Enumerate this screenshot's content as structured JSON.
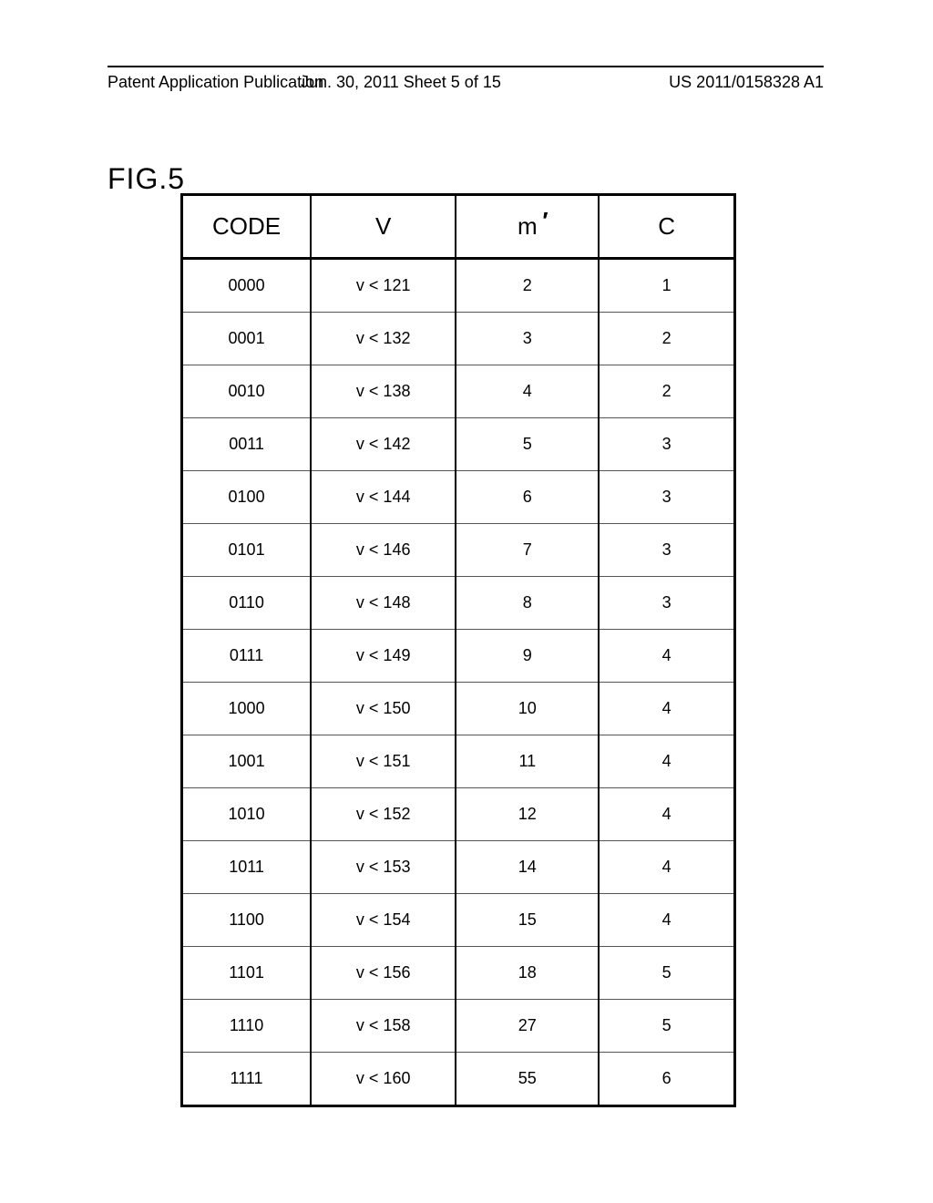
{
  "header": {
    "left": "Patent Application Publication",
    "center": "Jun. 30, 2011  Sheet 5 of 15",
    "right": "US 2011/0158328 A1"
  },
  "figure_label": "FIG.5",
  "table": {
    "columns": [
      {
        "key": "code",
        "label": "CODE",
        "class": "col-code"
      },
      {
        "key": "v",
        "label": "V",
        "class": "col-v"
      },
      {
        "key": "m",
        "label": "m",
        "class": "col-m",
        "has_prime": true
      },
      {
        "key": "c",
        "label": "C",
        "class": "col-c"
      }
    ],
    "rows": [
      {
        "code": "0000",
        "v": "v < 121",
        "m": "2",
        "c": "1"
      },
      {
        "code": "0001",
        "v": "v < 132",
        "m": "3",
        "c": "2"
      },
      {
        "code": "0010",
        "v": "v < 138",
        "m": "4",
        "c": "2"
      },
      {
        "code": "0011",
        "v": "v < 142",
        "m": "5",
        "c": "3"
      },
      {
        "code": "0100",
        "v": "v < 144",
        "m": "6",
        "c": "3"
      },
      {
        "code": "0101",
        "v": "v < 146",
        "m": "7",
        "c": "3"
      },
      {
        "code": "0110",
        "v": "v < 148",
        "m": "8",
        "c": "3"
      },
      {
        "code": "0111",
        "v": "v < 149",
        "m": "9",
        "c": "4"
      },
      {
        "code": "1000",
        "v": "v < 150",
        "m": "10",
        "c": "4"
      },
      {
        "code": "1001",
        "v": "v < 151",
        "m": "11",
        "c": "4"
      },
      {
        "code": "1010",
        "v": "v < 152",
        "m": "12",
        "c": "4"
      },
      {
        "code": "1011",
        "v": "v < 153",
        "m": "14",
        "c": "4"
      },
      {
        "code": "1100",
        "v": "v < 154",
        "m": "15",
        "c": "4"
      },
      {
        "code": "1101",
        "v": "v < 156",
        "m": "18",
        "c": "5"
      },
      {
        "code": "1110",
        "v": "v < 158",
        "m": "27",
        "c": "5"
      },
      {
        "code": "1111",
        "v": "v < 160",
        "m": "55",
        "c": "6"
      }
    ]
  },
  "styling": {
    "page_bg": "#ffffff",
    "border_color": "#000000",
    "outer_border_width": 3,
    "inner_vertical_border_width": 2,
    "row_divider_color": "#555555",
    "header_fontsize": 26,
    "cell_fontsize": 18,
    "figure_label_fontsize": 32
  }
}
